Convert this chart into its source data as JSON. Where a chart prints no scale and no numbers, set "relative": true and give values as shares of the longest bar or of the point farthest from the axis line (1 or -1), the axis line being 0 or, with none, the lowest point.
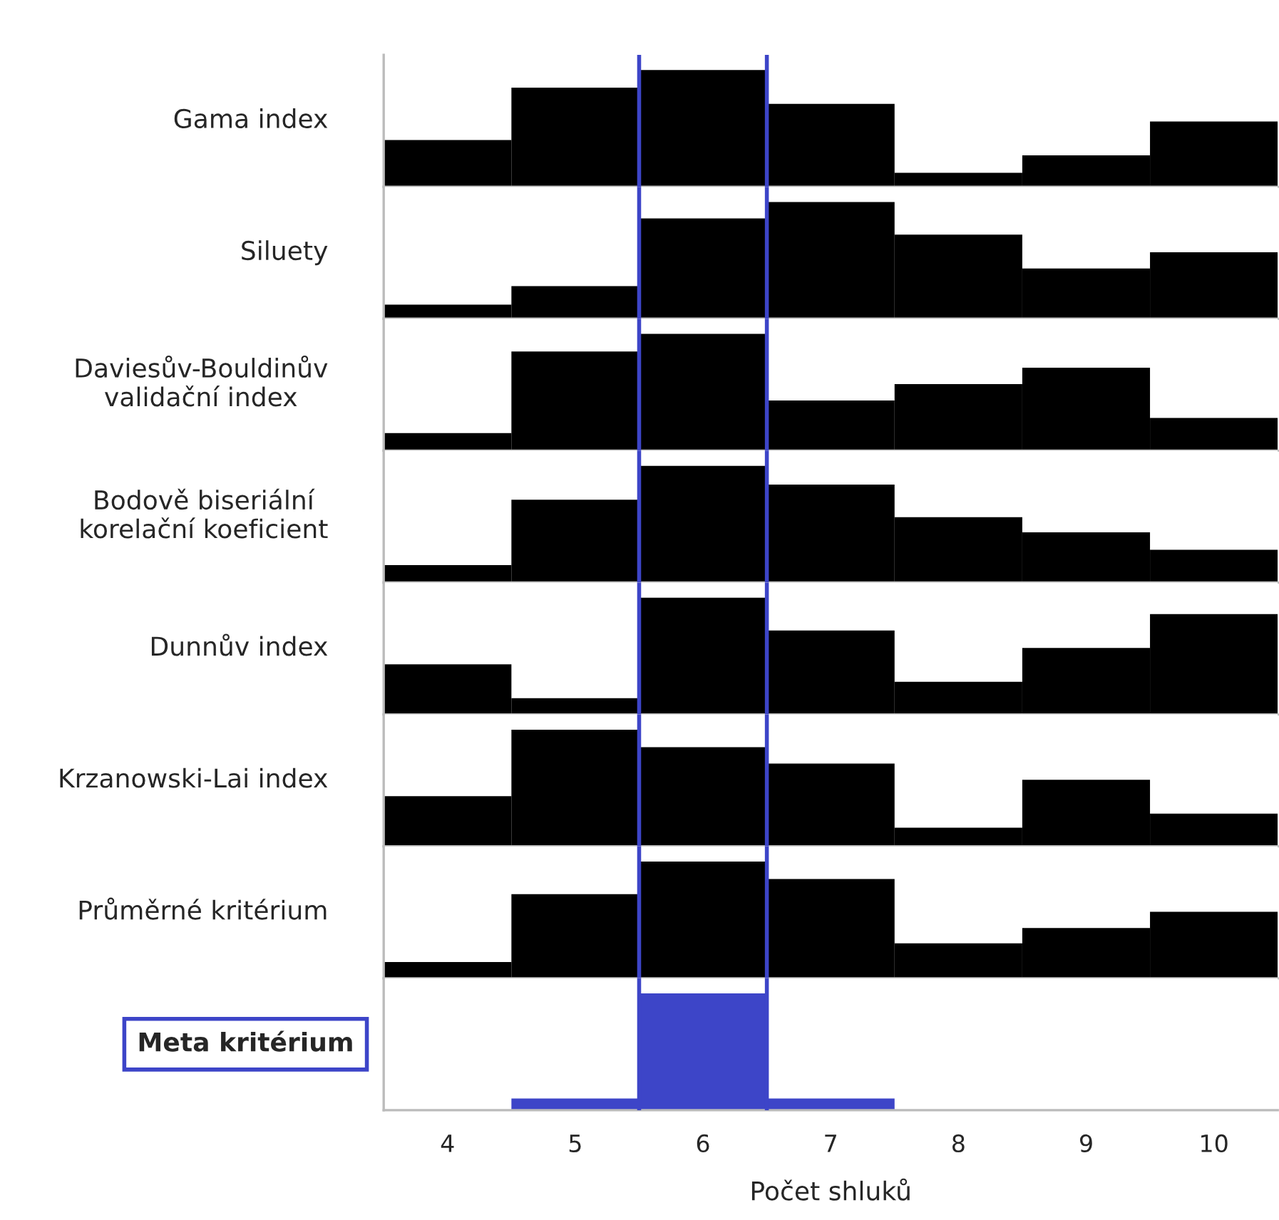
{
  "chart_data": [
    {
      "type": "bar",
      "relative": true,
      "ylabel": "Gama index",
      "x": [
        4,
        5,
        6,
        7,
        8,
        9,
        10
      ],
      "xlim": [
        3.5,
        10.5
      ],
      "xticks": [
        4,
        5,
        6,
        7,
        8,
        9,
        10
      ],
      "tick_labels": false,
      "color": "#000000",
      "values": [
        0.4,
        0.85,
        1,
        0.71,
        0.12,
        0.27,
        0.56
      ],
      "ref_lines": [
        {
          "axis": "x",
          "value": 5.5,
          "color": "#3d45c8"
        },
        {
          "axis": "x",
          "value": 6.5,
          "color": "#3d45c8"
        }
      ]
    },
    {
      "type": "bar",
      "relative": true,
      "ylabel": "Siluety",
      "x": [
        4,
        5,
        6,
        7,
        8,
        9,
        10
      ],
      "xlim": [
        3.5,
        10.5
      ],
      "xticks": [
        4,
        5,
        6,
        7,
        8,
        9,
        10
      ],
      "tick_labels": false,
      "color": "#000000",
      "values": [
        0.12,
        0.28,
        0.86,
        1,
        0.72,
        0.43,
        0.57
      ],
      "ref_lines": [
        {
          "axis": "x",
          "value": 5.5,
          "color": "#3d45c8"
        },
        {
          "axis": "x",
          "value": 6.5,
          "color": "#3d45c8"
        }
      ]
    },
    {
      "type": "bar",
      "relative": true,
      "ylabel": "Daviesův-Bouldinův\nvalidační index",
      "x": [
        4,
        5,
        6,
        7,
        8,
        9,
        10
      ],
      "xlim": [
        3.5,
        10.5
      ],
      "xticks": [
        4,
        5,
        6,
        7,
        8,
        9,
        10
      ],
      "tick_labels": false,
      "color": "#000000",
      "values": [
        0.15,
        0.85,
        1,
        0.43,
        0.57,
        0.71,
        0.28
      ],
      "ref_lines": [
        {
          "axis": "x",
          "value": 5.5,
          "color": "#3d45c8"
        },
        {
          "axis": "x",
          "value": 6.5,
          "color": "#3d45c8"
        }
      ]
    },
    {
      "type": "bar",
      "relative": true,
      "ylabel": "Bodově biseriální\nkorelační koeficient",
      "x": [
        4,
        5,
        6,
        7,
        8,
        9,
        10
      ],
      "xlim": [
        3.5,
        10.5
      ],
      "xticks": [
        4,
        5,
        6,
        7,
        8,
        9,
        10
      ],
      "tick_labels": false,
      "color": "#000000",
      "values": [
        0.15,
        0.71,
        1,
        0.84,
        0.56,
        0.43,
        0.28
      ],
      "ref_lines": [
        {
          "axis": "x",
          "value": 5.5,
          "color": "#3d45c8"
        },
        {
          "axis": "x",
          "value": 6.5,
          "color": "#3d45c8"
        }
      ]
    },
    {
      "type": "bar",
      "relative": true,
      "ylabel": "Dunnův index",
      "x": [
        4,
        5,
        6,
        7,
        8,
        9,
        10
      ],
      "xlim": [
        3.5,
        10.5
      ],
      "xticks": [
        4,
        5,
        6,
        7,
        8,
        9,
        10
      ],
      "tick_labels": false,
      "color": "#000000",
      "values": [
        0.43,
        0.14,
        1,
        0.72,
        0.28,
        0.57,
        0.86
      ],
      "ref_lines": [
        {
          "axis": "x",
          "value": 5.5,
          "color": "#3d45c8"
        },
        {
          "axis": "x",
          "value": 6.5,
          "color": "#3d45c8"
        }
      ]
    },
    {
      "type": "bar",
      "relative": true,
      "ylabel": "Krzanowski-Lai index",
      "x": [
        4,
        5,
        6,
        7,
        8,
        9,
        10
      ],
      "xlim": [
        3.5,
        10.5
      ],
      "xticks": [
        4,
        5,
        6,
        7,
        8,
        9,
        10
      ],
      "tick_labels": false,
      "color": "#000000",
      "values": [
        0.43,
        1,
        0.85,
        0.71,
        0.16,
        0.57,
        0.28
      ],
      "ref_lines": [
        {
          "axis": "x",
          "value": 5.5,
          "color": "#3d45c8"
        },
        {
          "axis": "x",
          "value": 6.5,
          "color": "#3d45c8"
        }
      ]
    },
    {
      "type": "bar",
      "relative": true,
      "ylabel": "Průměrné kritérium",
      "x": [
        4,
        5,
        6,
        7,
        8,
        9,
        10
      ],
      "xlim": [
        3.5,
        10.5
      ],
      "xticks": [
        4,
        5,
        6,
        7,
        8,
        9,
        10
      ],
      "tick_labels": false,
      "color": "#000000",
      "values": [
        0.14,
        0.72,
        1,
        0.85,
        0.3,
        0.43,
        0.57
      ],
      "ref_lines": [
        {
          "axis": "x",
          "value": 5.5,
          "color": "#3d45c8"
        },
        {
          "axis": "x",
          "value": 6.5,
          "color": "#3d45c8"
        }
      ]
    },
    {
      "type": "bar",
      "relative": true,
      "ylabel": "Meta kritérium",
      "xlabel": "Počet shluků",
      "x": [
        4,
        5,
        6,
        7,
        8,
        9,
        10
      ],
      "xlim": [
        3.5,
        10.5
      ],
      "xticks": [
        4,
        5,
        6,
        7,
        8,
        9,
        10
      ],
      "tick_labels": "x",
      "color": "#3d45c8",
      "values": [
        0,
        0.1,
        1,
        0.1,
        0,
        0,
        0
      ],
      "ref_lines": [
        {
          "axis": "x",
          "value": 5.5,
          "color": "#3d45c8"
        },
        {
          "axis": "x",
          "value": 6.5,
          "color": "#3d45c8"
        }
      ]
    }
  ]
}
